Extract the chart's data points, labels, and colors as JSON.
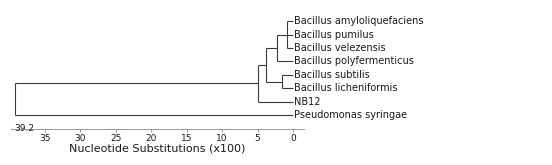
{
  "taxa_labels": [
    "Bacillus amyloliquefaciens",
    "Bacillus pumilus",
    "Bacillus velezensis",
    "Bacillus polyfermenticus",
    "Bacillus subtilis",
    "Bacillus licheniformis",
    "NB12",
    "Pseudomonas syringae"
  ],
  "xlabel": "Nucleotide Substitutions (x100)",
  "scale_label": "39.2",
  "axis_max": 39.2,
  "tick_positions": [
    0,
    5,
    10,
    15,
    20,
    25,
    30,
    35
  ],
  "background_color": "#ffffff",
  "line_color": "#3a3a3a",
  "text_color": "#1a1a1a",
  "fontsize": 7.0,
  "xlabel_fontsize": 8.0,
  "n_amy_pum_vel": 0.8,
  "n_poly": 2.2,
  "n_sub_lich": 1.5,
  "n_upper": 3.8,
  "n_nb12": 5.0,
  "n_root": 39.2
}
